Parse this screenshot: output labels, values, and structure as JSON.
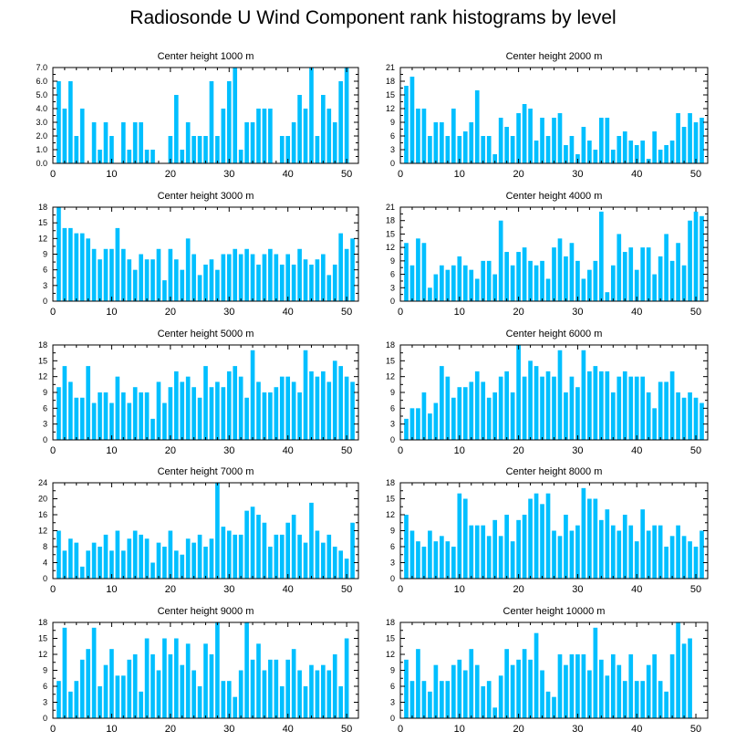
{
  "title": "Radiosonde U Wind Component rank histograms by level",
  "bar_color": "#00BFFF",
  "chart_data": [
    {
      "type": "bar",
      "title": "Center height 1000 m",
      "x": [
        1,
        2,
        3,
        4,
        5,
        6,
        7,
        8,
        9,
        10,
        11,
        12,
        13,
        14,
        15,
        16,
        17,
        18,
        19,
        20,
        21,
        22,
        23,
        24,
        25,
        26,
        27,
        28,
        29,
        30,
        31,
        32,
        33,
        34,
        35,
        36,
        37,
        38,
        39,
        40,
        41,
        42,
        43,
        44,
        45,
        46,
        47,
        48,
        49,
        50,
        51
      ],
      "values": [
        6,
        4,
        6,
        2,
        4,
        0,
        3,
        1,
        3,
        2,
        0,
        3,
        1,
        3,
        3,
        1,
        1,
        0,
        0,
        2,
        5,
        1,
        3,
        2,
        2,
        2,
        6,
        2,
        4,
        6,
        7,
        1,
        3,
        3,
        4,
        4,
        4,
        0,
        2,
        2,
        3,
        5,
        4,
        7,
        2,
        5,
        4,
        3,
        6,
        7,
        0
      ],
      "xlim": [
        0,
        52
      ],
      "ylim": [
        0,
        7
      ],
      "yticks": [
        0,
        1,
        2,
        3,
        4,
        5,
        6,
        7
      ],
      "ytick_labels": [
        "0.0",
        "1.0",
        "2.0",
        "3.0",
        "4.0",
        "5.0",
        "6.0",
        "7.0"
      ],
      "xticks": [
        0,
        10,
        20,
        30,
        40,
        50
      ],
      "ytick_side": "left"
    },
    {
      "type": "bar",
      "title": "Center height 2000 m",
      "x": [
        1,
        2,
        3,
        4,
        5,
        6,
        7,
        8,
        9,
        10,
        11,
        12,
        13,
        14,
        15,
        16,
        17,
        18,
        19,
        20,
        21,
        22,
        23,
        24,
        25,
        26,
        27,
        28,
        29,
        30,
        31,
        32,
        33,
        34,
        35,
        36,
        37,
        38,
        39,
        40,
        41,
        42,
        43,
        44,
        45,
        46,
        47,
        48,
        49,
        50,
        51
      ],
      "values": [
        17,
        19,
        12,
        12,
        6,
        9,
        9,
        6,
        12,
        6,
        7,
        9,
        16,
        6,
        6,
        2,
        10,
        8,
        6,
        11,
        13,
        12,
        5,
        10,
        6,
        10,
        11,
        4,
        6,
        2,
        8,
        5,
        3,
        10,
        10,
        3,
        6,
        7,
        5,
        4,
        5,
        1,
        7,
        3,
        4,
        5,
        11,
        8,
        11,
        9,
        10
      ],
      "xlim": [
        0,
        52
      ],
      "ylim": [
        0,
        21
      ],
      "yticks": [
        0,
        3,
        6,
        9,
        12,
        15,
        18,
        21
      ],
      "ytick_labels": [
        "0",
        "3",
        "6",
        "9",
        "12",
        "15",
        "18",
        "21"
      ],
      "xticks": [
        0,
        10,
        20,
        30,
        40,
        50
      ],
      "ytick_side": "left"
    },
    {
      "type": "bar",
      "title": "Center height 3000 m",
      "x": [
        1,
        2,
        3,
        4,
        5,
        6,
        7,
        8,
        9,
        10,
        11,
        12,
        13,
        14,
        15,
        16,
        17,
        18,
        19,
        20,
        21,
        22,
        23,
        24,
        25,
        26,
        27,
        28,
        29,
        30,
        31,
        32,
        33,
        34,
        35,
        36,
        37,
        38,
        39,
        40,
        41,
        42,
        43,
        44,
        45,
        46,
        47,
        48,
        49,
        50,
        51
      ],
      "values": [
        18,
        14,
        14,
        13,
        13,
        12,
        10,
        8,
        10,
        10,
        14,
        10,
        8,
        6,
        9,
        8,
        8,
        10,
        4,
        10,
        8,
        6,
        12,
        9,
        5,
        7,
        8,
        6,
        9,
        9,
        10,
        9,
        10,
        9,
        7,
        9,
        10,
        9,
        7,
        9,
        7,
        10,
        8,
        7,
        8,
        9,
        5,
        7,
        13,
        10,
        12
      ],
      "xlim": [
        0,
        52
      ],
      "ylim": [
        0,
        18
      ],
      "yticks": [
        0,
        3,
        6,
        9,
        12,
        15,
        18
      ],
      "ytick_labels": [
        "0",
        "3",
        "6",
        "9",
        "12",
        "15",
        "18"
      ],
      "xticks": [
        0,
        10,
        20,
        30,
        40,
        50
      ],
      "ytick_side": "right"
    },
    {
      "type": "bar",
      "title": "Center height 4000 m",
      "x": [
        1,
        2,
        3,
        4,
        5,
        6,
        7,
        8,
        9,
        10,
        11,
        12,
        13,
        14,
        15,
        16,
        17,
        18,
        19,
        20,
        21,
        22,
        23,
        24,
        25,
        26,
        27,
        28,
        29,
        30,
        31,
        32,
        33,
        34,
        35,
        36,
        37,
        38,
        39,
        40,
        41,
        42,
        43,
        44,
        45,
        46,
        47,
        48,
        49,
        50,
        51
      ],
      "values": [
        13,
        8,
        14,
        13,
        3,
        6,
        8,
        7,
        8,
        10,
        8,
        7,
        5,
        9,
        9,
        6,
        18,
        11,
        8,
        11,
        12,
        9,
        8,
        9,
        5,
        12,
        14,
        10,
        13,
        9,
        5,
        7,
        9,
        20,
        2,
        8,
        15,
        11,
        12,
        7,
        12,
        12,
        6,
        10,
        15,
        9,
        13,
        8,
        18,
        20,
        19
      ],
      "xlim": [
        0,
        52
      ],
      "ylim": [
        0,
        21
      ],
      "yticks": [
        0,
        3,
        6,
        9,
        12,
        15,
        18,
        21
      ],
      "ytick_labels": [
        "0",
        "3",
        "6",
        "9",
        "12",
        "15",
        "18",
        "21"
      ],
      "xticks": [
        0,
        10,
        20,
        30,
        40,
        50
      ],
      "ytick_side": "left"
    },
    {
      "type": "bar",
      "title": "Center height 5000 m",
      "x": [
        1,
        2,
        3,
        4,
        5,
        6,
        7,
        8,
        9,
        10,
        11,
        12,
        13,
        14,
        15,
        16,
        17,
        18,
        19,
        20,
        21,
        22,
        23,
        24,
        25,
        26,
        27,
        28,
        29,
        30,
        31,
        32,
        33,
        34,
        35,
        36,
        37,
        38,
        39,
        40,
        41,
        42,
        43,
        44,
        45,
        46,
        47,
        48,
        49,
        50,
        51
      ],
      "values": [
        10,
        14,
        11,
        8,
        8,
        14,
        7,
        9,
        9,
        7,
        12,
        9,
        7,
        10,
        9,
        9,
        4,
        11,
        7,
        10,
        13,
        11,
        12,
        10,
        8,
        14,
        10,
        11,
        10,
        13,
        14,
        12,
        8,
        17,
        11,
        9,
        9,
        10,
        12,
        12,
        11,
        9,
        17,
        13,
        12,
        13,
        11,
        15,
        14,
        12,
        11
      ],
      "xlim": [
        0,
        52
      ],
      "ylim": [
        0,
        18
      ],
      "yticks": [
        0,
        3,
        6,
        9,
        12,
        15,
        18
      ],
      "ytick_labels": [
        "0",
        "3",
        "6",
        "9",
        "12",
        "15",
        "18"
      ],
      "xticks": [
        0,
        10,
        20,
        30,
        40,
        50
      ],
      "ytick_side": "left"
    },
    {
      "type": "bar",
      "title": "Center height 6000 m",
      "x": [
        1,
        2,
        3,
        4,
        5,
        6,
        7,
        8,
        9,
        10,
        11,
        12,
        13,
        14,
        15,
        16,
        17,
        18,
        19,
        20,
        21,
        22,
        23,
        24,
        25,
        26,
        27,
        28,
        29,
        30,
        31,
        32,
        33,
        34,
        35,
        36,
        37,
        38,
        39,
        40,
        41,
        42,
        43,
        44,
        45,
        46,
        47,
        48,
        49,
        50,
        51
      ],
      "values": [
        4,
        6,
        6,
        9,
        5,
        7,
        14,
        12,
        8,
        10,
        10,
        11,
        13,
        11,
        8,
        9,
        12,
        13,
        9,
        18,
        12,
        15,
        14,
        12,
        13,
        12,
        17,
        9,
        12,
        10,
        17,
        13,
        14,
        13,
        13,
        9,
        12,
        13,
        12,
        12,
        12,
        9,
        6,
        11,
        11,
        13,
        9,
        8,
        9,
        8,
        7
      ],
      "xlim": [
        0,
        52
      ],
      "ylim": [
        0,
        18
      ],
      "yticks": [
        0,
        3,
        6,
        9,
        12,
        15,
        18
      ],
      "ytick_labels": [
        "0",
        "3",
        "6",
        "9",
        "12",
        "15",
        "18"
      ],
      "xticks": [
        0,
        10,
        20,
        30,
        40,
        50
      ],
      "ytick_side": "left"
    },
    {
      "type": "bar",
      "title": "Center height 7000 m",
      "x": [
        1,
        2,
        3,
        4,
        5,
        6,
        7,
        8,
        9,
        10,
        11,
        12,
        13,
        14,
        15,
        16,
        17,
        18,
        19,
        20,
        21,
        22,
        23,
        24,
        25,
        26,
        27,
        28,
        29,
        30,
        31,
        32,
        33,
        34,
        35,
        36,
        37,
        38,
        39,
        40,
        41,
        42,
        43,
        44,
        45,
        46,
        47,
        48,
        49,
        50,
        51
      ],
      "values": [
        12,
        7,
        10,
        9,
        3,
        7,
        9,
        8,
        11,
        7,
        12,
        7,
        10,
        12,
        11,
        10,
        4,
        9,
        8,
        12,
        7,
        6,
        10,
        9,
        11,
        8,
        10,
        24,
        13,
        12,
        11,
        11,
        17,
        18,
        16,
        14,
        8,
        11,
        11,
        14,
        16,
        11,
        9,
        19,
        12,
        9,
        11,
        8,
        7,
        5,
        14
      ],
      "xlim": [
        0,
        52
      ],
      "ylim": [
        0,
        24
      ],
      "yticks": [
        0,
        4,
        8,
        12,
        16,
        20,
        24
      ],
      "ytick_labels": [
        "0",
        "4",
        "8",
        "12",
        "16",
        "20",
        "24"
      ],
      "xticks": [
        0,
        10,
        20,
        30,
        40,
        50
      ],
      "ytick_side": "left"
    },
    {
      "type": "bar",
      "title": "Center height 8000 m",
      "x": [
        1,
        2,
        3,
        4,
        5,
        6,
        7,
        8,
        9,
        10,
        11,
        12,
        13,
        14,
        15,
        16,
        17,
        18,
        19,
        20,
        21,
        22,
        23,
        24,
        25,
        26,
        27,
        28,
        29,
        30,
        31,
        32,
        33,
        34,
        35,
        36,
        37,
        38,
        39,
        40,
        41,
        42,
        43,
        44,
        45,
        46,
        47,
        48,
        49,
        50,
        51
      ],
      "values": [
        12,
        9,
        7,
        6,
        9,
        7,
        8,
        7,
        6,
        16,
        15,
        10,
        10,
        10,
        8,
        11,
        8,
        12,
        7,
        11,
        12,
        15,
        16,
        14,
        16,
        9,
        8,
        12,
        9,
        10,
        17,
        15,
        15,
        11,
        13,
        10,
        9,
        12,
        10,
        7,
        13,
        9,
        10,
        10,
        6,
        8,
        10,
        8,
        7,
        6,
        9
      ],
      "xlim": [
        0,
        52
      ],
      "ylim": [
        0,
        18
      ],
      "yticks": [
        0,
        3,
        6,
        9,
        12,
        15,
        18
      ],
      "ytick_labels": [
        "0",
        "3",
        "6",
        "9",
        "12",
        "15",
        "18"
      ],
      "xticks": [
        0,
        10,
        20,
        30,
        40,
        50
      ],
      "ytick_side": "left"
    },
    {
      "type": "bar",
      "title": "Center height 9000 m",
      "x": [
        1,
        2,
        3,
        4,
        5,
        6,
        7,
        8,
        9,
        10,
        11,
        12,
        13,
        14,
        15,
        16,
        17,
        18,
        19,
        20,
        21,
        22,
        23,
        24,
        25,
        26,
        27,
        28,
        29,
        30,
        31,
        32,
        33,
        34,
        35,
        36,
        37,
        38,
        39,
        40,
        41,
        42,
        43,
        44,
        45,
        46,
        47,
        48,
        49,
        50,
        51
      ],
      "values": [
        7,
        17,
        5,
        7,
        11,
        13,
        17,
        6,
        10,
        13,
        8,
        8,
        11,
        12,
        5,
        15,
        12,
        9,
        15,
        12,
        15,
        10,
        14,
        9,
        6,
        14,
        12,
        18,
        7,
        7,
        4,
        9,
        18,
        11,
        14,
        9,
        11,
        11,
        6,
        11,
        13,
        9,
        6,
        10,
        9,
        10,
        9,
        12,
        6,
        15,
        0
      ],
      "xlim": [
        0,
        52
      ],
      "ylim": [
        0,
        18
      ],
      "yticks": [
        0,
        3,
        6,
        9,
        12,
        15,
        18
      ],
      "ytick_labels": [
        "0",
        "3",
        "6",
        "9",
        "12",
        "15",
        "18"
      ],
      "xticks": [
        0,
        10,
        20,
        30,
        40,
        50
      ],
      "ytick_side": "left"
    },
    {
      "type": "bar",
      "title": "Center height 10000 m",
      "x": [
        1,
        2,
        3,
        4,
        5,
        6,
        7,
        8,
        9,
        10,
        11,
        12,
        13,
        14,
        15,
        16,
        17,
        18,
        19,
        20,
        21,
        22,
        23,
        24,
        25,
        26,
        27,
        28,
        29,
        30,
        31,
        32,
        33,
        34,
        35,
        36,
        37,
        38,
        39,
        40,
        41,
        42,
        43,
        44,
        45,
        46,
        47,
        48,
        49,
        50,
        51
      ],
      "values": [
        11,
        7,
        13,
        7,
        5,
        10,
        7,
        7,
        10,
        11,
        9,
        13,
        10,
        6,
        7,
        2,
        8,
        13,
        10,
        11,
        13,
        11,
        16,
        9,
        5,
        4,
        12,
        10,
        12,
        12,
        12,
        9,
        17,
        11,
        8,
        12,
        10,
        7,
        12,
        7,
        7,
        10,
        12,
        7,
        5,
        12,
        18,
        14,
        15,
        0,
        0
      ],
      "xlim": [
        0,
        52
      ],
      "ylim": [
        0,
        18
      ],
      "yticks": [
        0,
        3,
        6,
        9,
        12,
        15,
        18
      ],
      "ytick_labels": [
        "0",
        "3",
        "6",
        "9",
        "12",
        "15",
        "18"
      ],
      "xticks": [
        0,
        10,
        20,
        30,
        40,
        50
      ],
      "ytick_side": "left"
    }
  ]
}
